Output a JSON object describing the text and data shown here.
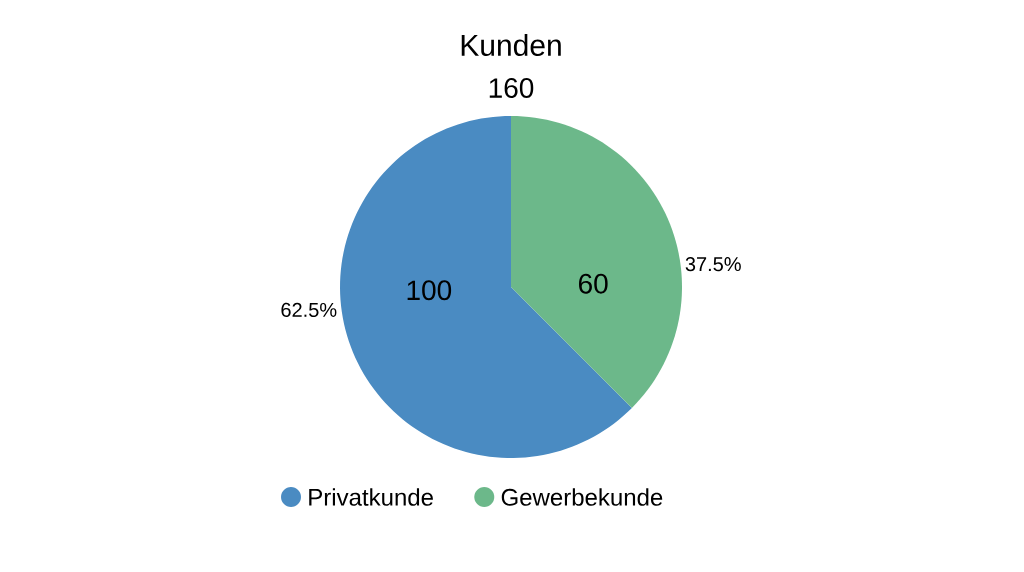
{
  "chart_data": {
    "type": "pie",
    "title": "Kunden",
    "subtitle": "160",
    "categories": [
      "Privatkunde",
      "Gewerbekunde"
    ],
    "values": [
      100,
      60
    ],
    "colors": [
      "#4a8bc2",
      "#6cb88a"
    ],
    "value_labels": [
      "100",
      "60"
    ],
    "annotations": [
      "62.5%",
      "37.5%"
    ],
    "legend": "bottom"
  }
}
